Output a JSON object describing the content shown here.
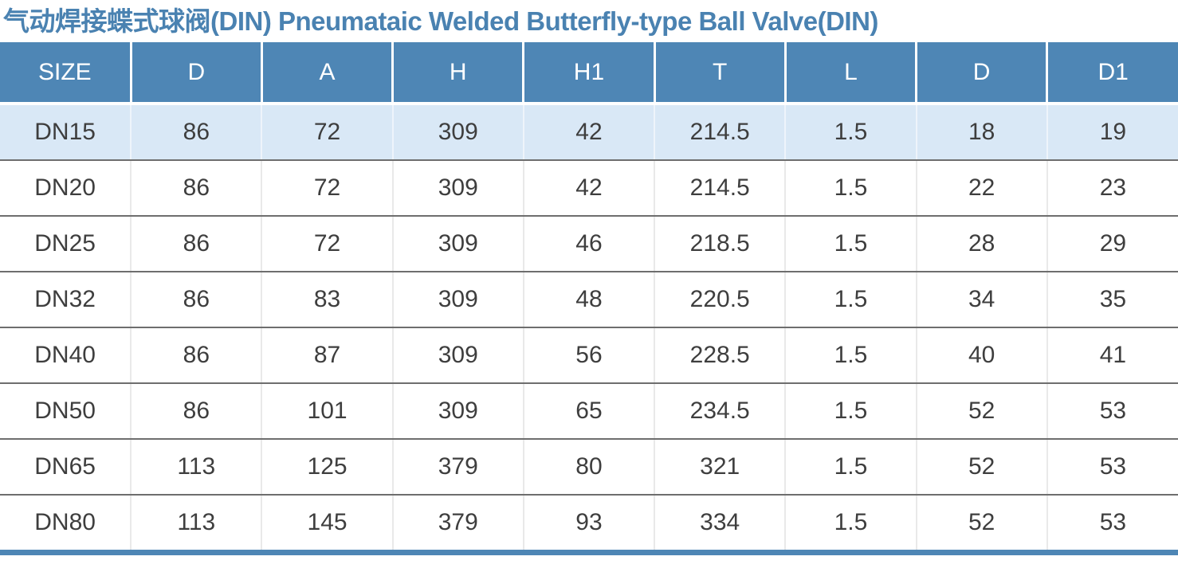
{
  "title": "气动焊接蝶式球阀(DIN) Pneumataic Welded Butterfly-type Ball Valve(DIN)",
  "colors": {
    "header_bg": "#4e86b5",
    "header_text": "#ffffff",
    "title_text": "#4a82b1",
    "highlight_row_bg": "#d9e8f6",
    "row_separator": "#6e6e6e",
    "bottom_bar": "#4e86b5",
    "body_text": "#3e3e3e"
  },
  "chart_data": {
    "type": "table",
    "title": "气动焊接蝶式球阀(DIN) Pneumataic Welded Butterfly-type Ball Valve(DIN)",
    "columns": [
      "SIZE",
      "D",
      "A",
      "H",
      "H1",
      "T",
      "L",
      "D",
      "D1"
    ],
    "rows": [
      [
        "DN15",
        "86",
        "72",
        "309",
        "42",
        "214.5",
        "1.5",
        "18",
        "19"
      ],
      [
        "DN20",
        "86",
        "72",
        "309",
        "42",
        "214.5",
        "1.5",
        "22",
        "23"
      ],
      [
        "DN25",
        "86",
        "72",
        "309",
        "46",
        "218.5",
        "1.5",
        "28",
        "29"
      ],
      [
        "DN32",
        "86",
        "83",
        "309",
        "48",
        "220.5",
        "1.5",
        "34",
        "35"
      ],
      [
        "DN40",
        "86",
        "87",
        "309",
        "56",
        "228.5",
        "1.5",
        "40",
        "41"
      ],
      [
        "DN50",
        "86",
        "101",
        "309",
        "65",
        "234.5",
        "1.5",
        "52",
        "53"
      ],
      [
        "DN65",
        "113",
        "125",
        "379",
        "80",
        "321",
        "1.5",
        "52",
        "53"
      ],
      [
        "DN80",
        "113",
        "145",
        "379",
        "93",
        "334",
        "1.5",
        "52",
        "53"
      ]
    ],
    "highlight_row_index": 0,
    "layout": "full-width table, header row blue with white text, first data row light-blue, thin dark separators between rows, blue bar under last row"
  }
}
